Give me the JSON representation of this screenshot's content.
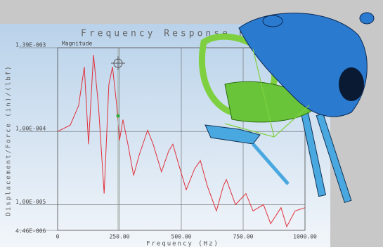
{
  "chart_data": {
    "type": "line",
    "title": "Frequency Response Function",
    "subtitle": "Magnitude",
    "x_label": "Frequency (Hz)",
    "y_label": "Displacement/Force (in)/(lbf)",
    "x": [
      0,
      51,
      85,
      108,
      125,
      145,
      165,
      188,
      207,
      222,
      239,
      250,
      264,
      284,
      307,
      330,
      364,
      386,
      420,
      449,
      466,
      491,
      520,
      554,
      577,
      605,
      642,
      670,
      682,
      719,
      761,
      790,
      832,
      861,
      903,
      926,
      960,
      1000
    ],
    "values": [
      0.0001,
      0.000122,
      0.000226,
      0.00076,
      6.7e-05,
      0.00111,
      0.000226,
      1.42e-05,
      0.00044,
      0.00076,
      0.000226,
      7.5e-05,
      0.000145,
      6.7e-05,
      2.5e-05,
      4.8e-05,
      0.000104,
      6.7e-05,
      2.8e-05,
      5.4e-05,
      6.7e-05,
      3.4e-05,
      1.6e-05,
      3.1e-05,
      4e-05,
      1.8e-05,
      8.2e-06,
      1.8e-05,
      2.2e-05,
      1e-05,
      1.42e-05,
      8.2e-06,
      1e-05,
      5.5e-06,
      9.1e-06,
      5e-06,
      8.2e-06,
      9.1e-06
    ],
    "color": "#e0303a",
    "xlim": [
      0,
      1000
    ],
    "xticks": [
      0,
      {
        "value": 250,
        "label": "250.00"
      },
      {
        "value": 500,
        "label": "500.00"
      },
      {
        "value": 750,
        "label": "750.00"
      },
      {
        "value": 1000,
        "label": "1000.00"
      }
    ],
    "ylim": [
      4.46e-06,
      0.00139
    ],
    "yticks": [
      {
        "value": 4.46e-06,
        "label": "4.46E-006"
      },
      {
        "value": 1e-05,
        "label": "1.00E-005"
      },
      {
        "value": 0.0001,
        "label": "1.00E-004"
      },
      {
        "value": 0.00139,
        "label": "1.39E-003"
      }
    ],
    "log_y": true,
    "grid": true
  }
}
